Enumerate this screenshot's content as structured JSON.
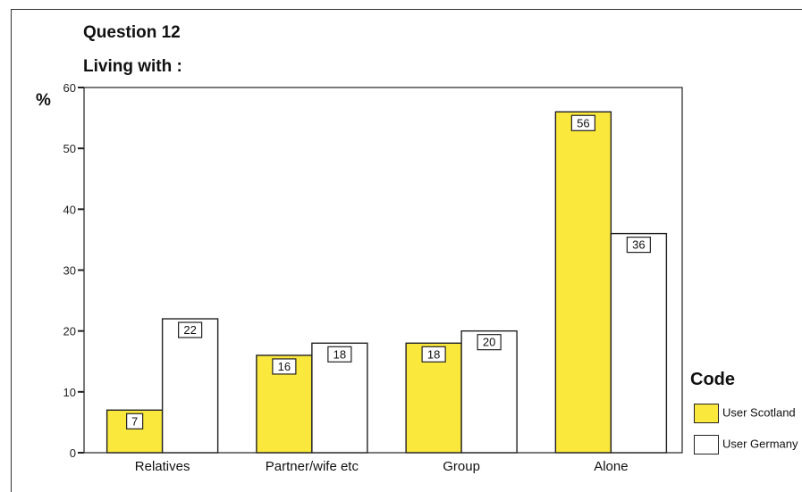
{
  "title": "Question 12",
  "chart_data": {
    "type": "bar",
    "title": "Living with :",
    "ylabel": "%",
    "xlabel": "",
    "ylim": [
      0,
      60
    ],
    "yticks": [
      0,
      10,
      20,
      30,
      40,
      50,
      60
    ],
    "categories": [
      "Relatives",
      "Partner/wife etc",
      "Group",
      "Alone"
    ],
    "series": [
      {
        "name": "User Scotland",
        "values": [
          7,
          16,
          18,
          56
        ],
        "labels": [
          "7",
          "16",
          "18",
          "56"
        ],
        "color": "#fbe83c"
      },
      {
        "name": "User Germany",
        "values": [
          22,
          18,
          20,
          36
        ],
        "labels": [
          "22",
          "18",
          "20",
          "36"
        ],
        "color": "#ffffff"
      }
    ],
    "legend": {
      "title": "Code",
      "position": "right"
    },
    "grid": false
  }
}
